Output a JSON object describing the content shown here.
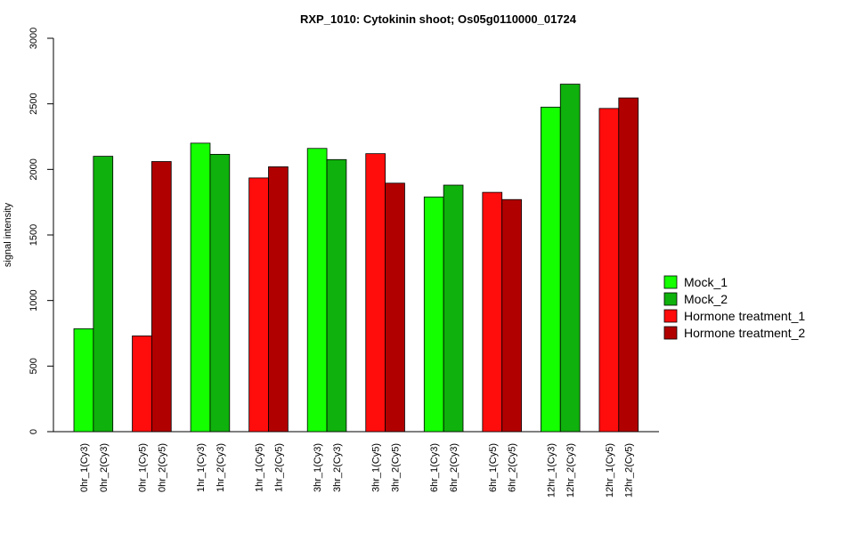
{
  "chart_data": {
    "type": "bar",
    "title": "RXP_1010: Cytokinin shoot; Os05g0110000_01724",
    "xlabel": "",
    "ylabel": "signal intensity",
    "ylim": [
      0,
      3000
    ],
    "yticks": [
      0,
      500,
      1000,
      1500,
      2000,
      2500,
      3000
    ],
    "grid": false,
    "legend_position": "right",
    "groups": [
      {
        "bars": [
          {
            "label": "0hr_1(Cy3)",
            "value": 785,
            "series": 0
          },
          {
            "label": "0hr_2(Cy3)",
            "value": 2100,
            "series": 1
          }
        ]
      },
      {
        "bars": [
          {
            "label": "0hr_1(Cy5)",
            "value": 730,
            "series": 2
          },
          {
            "label": "0hr_2(Cy5)",
            "value": 2060,
            "series": 3
          }
        ]
      },
      {
        "bars": [
          {
            "label": "1hr_1(Cy3)",
            "value": 2200,
            "series": 0
          },
          {
            "label": "1hr_2(Cy3)",
            "value": 2115,
            "series": 1
          }
        ]
      },
      {
        "bars": [
          {
            "label": "1hr_1(Cy5)",
            "value": 1935,
            "series": 2
          },
          {
            "label": "1hr_2(Cy5)",
            "value": 2020,
            "series": 3
          }
        ]
      },
      {
        "bars": [
          {
            "label": "3hr_1(Cy3)",
            "value": 2160,
            "series": 0
          },
          {
            "label": "3hr_2(Cy3)",
            "value": 2075,
            "series": 1
          }
        ]
      },
      {
        "bars": [
          {
            "label": "3hr_1(Cy5)",
            "value": 2120,
            "series": 2
          },
          {
            "label": "3hr_2(Cy5)",
            "value": 1895,
            "series": 3
          }
        ]
      },
      {
        "bars": [
          {
            "label": "6hr_1(Cy3)",
            "value": 1790,
            "series": 0
          },
          {
            "label": "6hr_2(Cy3)",
            "value": 1880,
            "series": 1
          }
        ]
      },
      {
        "bars": [
          {
            "label": "6hr_1(Cy5)",
            "value": 1825,
            "series": 2
          },
          {
            "label": "6hr_2(Cy5)",
            "value": 1770,
            "series": 3
          }
        ]
      },
      {
        "bars": [
          {
            "label": "12hr_1(Cy3)",
            "value": 2475,
            "series": 0
          },
          {
            "label": "12hr_2(Cy3)",
            "value": 2650,
            "series": 1
          }
        ]
      },
      {
        "bars": [
          {
            "label": "12hr_1(Cy5)",
            "value": 2465,
            "series": 2
          },
          {
            "label": "12hr_2(Cy5)",
            "value": 2545,
            "series": 3
          }
        ]
      }
    ],
    "series": [
      {
        "name": "Mock_1",
        "color": "#14ff00"
      },
      {
        "name": "Mock_2",
        "color": "#0fb10c"
      },
      {
        "name": "Hormone treatment_1",
        "color": "#ff0d0d"
      },
      {
        "name": "Hormone treatment_2",
        "color": "#b10000"
      }
    ]
  }
}
